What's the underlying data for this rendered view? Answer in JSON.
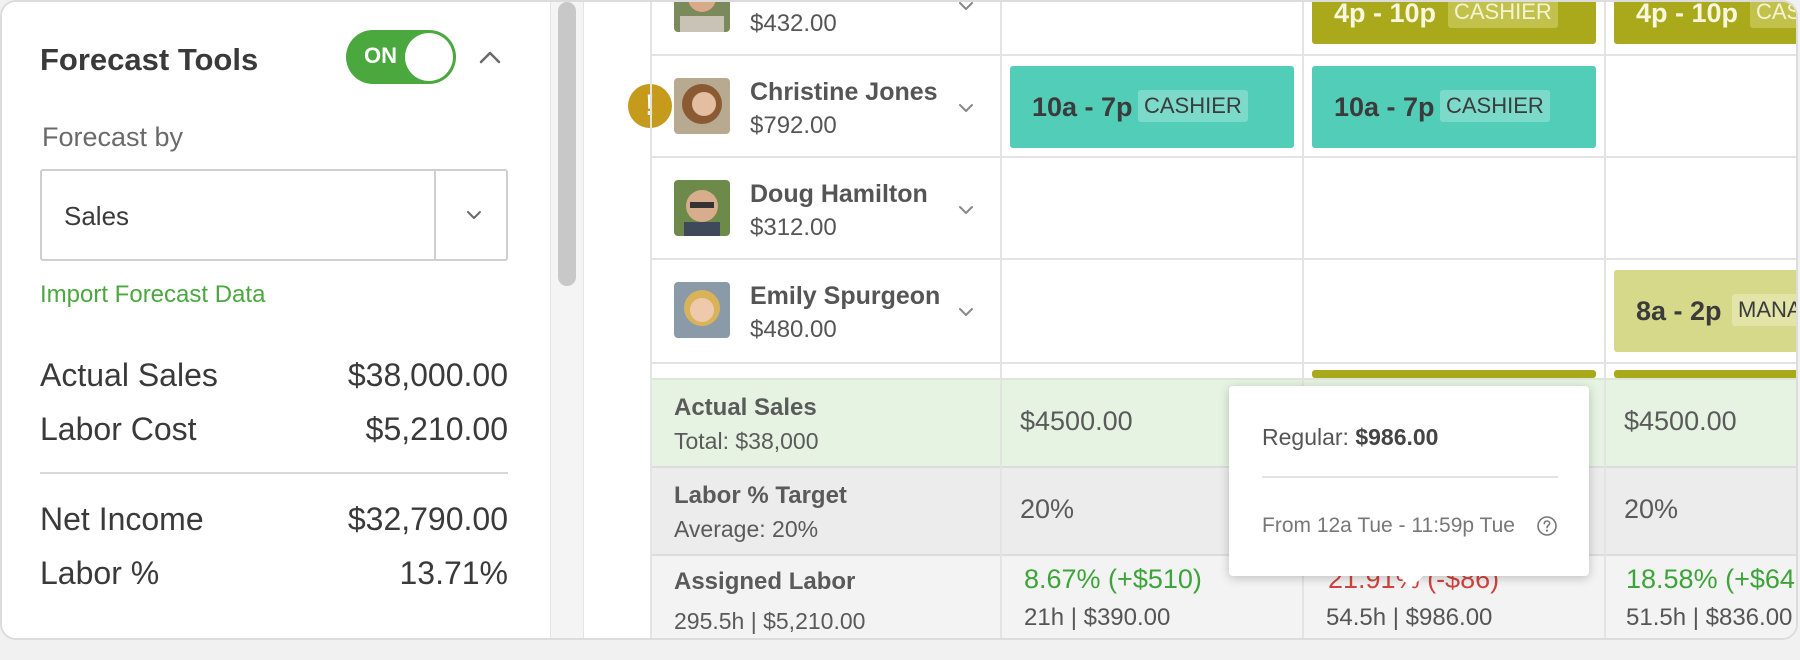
{
  "forecast": {
    "title": "Forecast Tools",
    "toggle_label": "ON",
    "forecast_by_label": "Forecast by",
    "forecast_by_value": "Sales",
    "import_link": "Import Forecast Data",
    "stats": [
      {
        "label": "Actual Sales",
        "value": "$38,000.00"
      },
      {
        "label": "Labor Cost",
        "value": "$5,210.00"
      },
      {
        "label": "Net Income",
        "value": "$32,790.00"
      },
      {
        "label": "Labor %",
        "value": "13.71%"
      }
    ]
  },
  "employees": [
    {
      "name": "",
      "pay": "$432.00"
    },
    {
      "name": "Christine Jones",
      "pay": "$792.00",
      "alert": "!"
    },
    {
      "name": "Doug Hamilton",
      "pay": "$312.00"
    },
    {
      "name": "Emily Spurgeon",
      "pay": "$480.00"
    }
  ],
  "shifts": {
    "row0_a": {
      "time": "4p - 10p",
      "role": "CASHIER"
    },
    "row0_b": {
      "time": "4p - 10p",
      "role": "CAS"
    },
    "row1_a": {
      "time": "10a - 7p",
      "role": "CASHIER"
    },
    "row1_b": {
      "time": "10a - 7p",
      "role": "CASHIER"
    },
    "row3_a": {
      "time": "8a - 2p",
      "role": "MANA"
    }
  },
  "summary": {
    "sales_label": "Actual Sales",
    "sales_total": "Total: $38,000",
    "sales_values": [
      "$4500.00",
      "$4500.00"
    ],
    "labor_target_label": "Labor % Target",
    "labor_target_avg": "Average: 20%",
    "labor_target_values": [
      "20%",
      "20%"
    ],
    "assigned_label": "Assigned Labor",
    "assigned_total": "295.5h | $5,210.00",
    "assigned_pct": [
      "8.67% (+$510)",
      "21.91% (-$86)",
      "18.58% (+$64"
    ],
    "assigned_hours": [
      "21h | $390.00",
      "54.5h | $986.00",
      "51.5h | $836.00"
    ]
  },
  "tooltip": {
    "regular_label": "Regular:",
    "regular_value": "$986.00",
    "range": "From 12a Tue - 11:59p Tue"
  },
  "colors": {
    "accent_green": "#4aa83e",
    "shift_teal": "#52cdb8",
    "shift_olive": "#a9a91b",
    "shift_lime": "#d6d98a",
    "alert": "#c69b1c",
    "over_red": "#d2433e"
  }
}
